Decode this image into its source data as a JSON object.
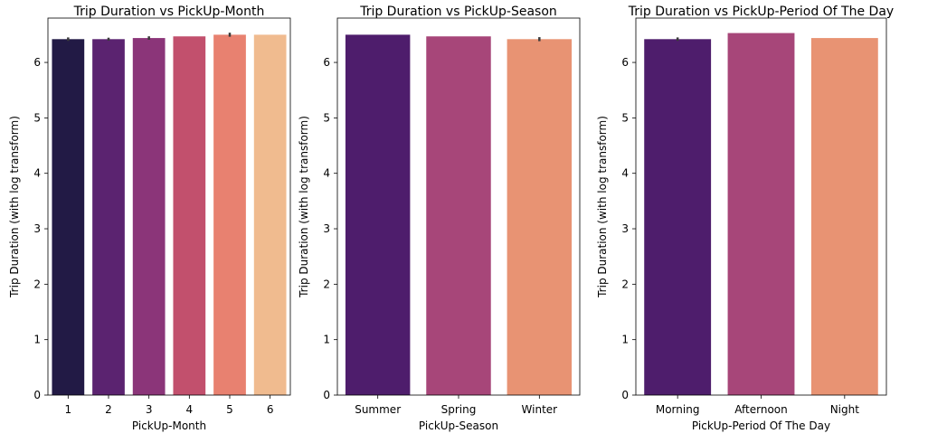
{
  "chart_data": [
    {
      "type": "bar",
      "title": "Trip Duration vs PickUp-Month",
      "xlabel": "PickUp-Month",
      "ylabel": "Trip Duration (with log transform)",
      "categories": [
        "1",
        "2",
        "3",
        "4",
        "5",
        "6"
      ],
      "values": [
        6.42,
        6.42,
        6.44,
        6.47,
        6.5,
        6.5
      ],
      "error": [
        0.015,
        0.01,
        0.015,
        0,
        0.02,
        0
      ],
      "colors": [
        "#221a45",
        "#5b2370",
        "#8b3579",
        "#c2506d",
        "#e88170",
        "#f0bb8f"
      ],
      "ylim": [
        0,
        6.8
      ],
      "yticks": [
        "0",
        "1",
        "2",
        "3",
        "4",
        "5",
        "6"
      ]
    },
    {
      "type": "bar",
      "title": "Trip Duration vs PickUp-Season",
      "xlabel": "PickUp-Season",
      "ylabel": "Trip Duration (with log transform)",
      "categories": [
        "Summer",
        "Spring",
        "Winter"
      ],
      "values": [
        6.5,
        6.47,
        6.42
      ],
      "error": [
        0,
        0,
        0.02
      ],
      "colors": [
        "#4e1d6c",
        "#a74679",
        "#e89373"
      ],
      "ylim": [
        0,
        6.8
      ],
      "yticks": [
        "0",
        "1",
        "2",
        "3",
        "4",
        "5",
        "6"
      ]
    },
    {
      "type": "bar",
      "title": "Trip Duration vs PickUp-Period Of The Day",
      "xlabel": "PickUp-Period Of The Day",
      "ylabel": "Trip Duration (with log transform)",
      "categories": [
        "Morning",
        "Afternoon",
        "Night"
      ],
      "values": [
        6.42,
        6.53,
        6.44
      ],
      "error": [
        0.015,
        0,
        0
      ],
      "colors": [
        "#4e1d6c",
        "#a74679",
        "#e89373"
      ],
      "ylim": [
        0,
        6.8
      ],
      "yticks": [
        "0",
        "1",
        "2",
        "3",
        "4",
        "5",
        "6"
      ]
    }
  ]
}
